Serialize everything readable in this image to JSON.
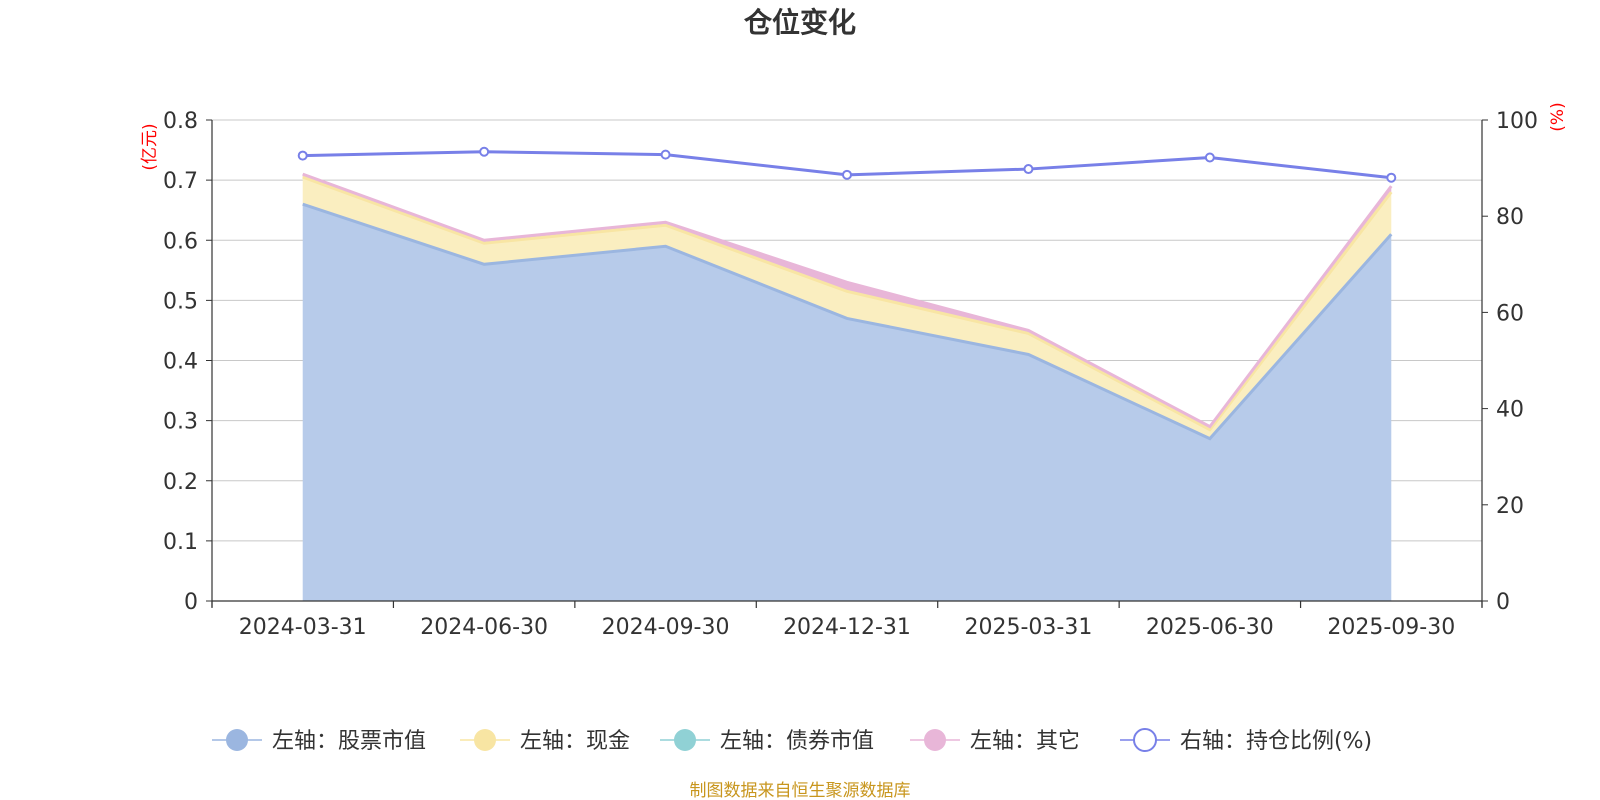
{
  "colors": {
    "stock": "#9bb6e0",
    "stock_fill": "#b7cbea",
    "cash": "#f8e5a3",
    "cash_fill": "#faeec0",
    "bond": "#90d1d5",
    "other": "#e8b6d8",
    "ratio": "#7880e8",
    "axis": "#333333",
    "grid": "#c8c8c8",
    "unit": "#ff0000",
    "footer": "#c8961e"
  },
  "chart_data": {
    "type": "area",
    "title": "仓位变化",
    "categories": [
      "2024-03-31",
      "2024-06-30",
      "2024-09-30",
      "2024-12-31",
      "2025-03-31",
      "2025-06-30",
      "2025-09-30"
    ],
    "left_axis": {
      "unit": "(亿元)",
      "range": [
        0,
        0.8
      ],
      "ticks": [
        "0",
        "0.1",
        "0.2",
        "0.3",
        "0.4",
        "0.5",
        "0.6",
        "0.7",
        "0.8"
      ]
    },
    "right_axis": {
      "unit": "(%)",
      "range": [
        0,
        100
      ],
      "ticks": [
        "0",
        "20",
        "40",
        "60",
        "80",
        "100"
      ]
    },
    "series": [
      {
        "name": "左轴：股票市值",
        "axis": "left",
        "stacked": true,
        "values": [
          0.66,
          0.56,
          0.59,
          0.47,
          0.41,
          0.27,
          0.61
        ]
      },
      {
        "name": "左轴：现金",
        "axis": "left",
        "stacked": true,
        "values": [
          0.045,
          0.035,
          0.035,
          0.045,
          0.035,
          0.015,
          0.07
        ]
      },
      {
        "name": "左轴：债券市值",
        "axis": "left",
        "stacked": true,
        "values": [
          0,
          0,
          0,
          0,
          0,
          0,
          0
        ]
      },
      {
        "name": "左轴：其它",
        "axis": "left",
        "stacked": true,
        "values": [
          0.005,
          0.005,
          0.005,
          0.015,
          0.005,
          0.005,
          0.01
        ]
      },
      {
        "name": "右轴：持仓比例(%)",
        "axis": "right",
        "values": [
          92.6,
          93.4,
          92.8,
          88.6,
          89.8,
          92.2,
          88.0
        ]
      }
    ],
    "legend_position": "bottom-center",
    "grid": true
  },
  "footer": "制图数据来自恒生聚源数据库"
}
